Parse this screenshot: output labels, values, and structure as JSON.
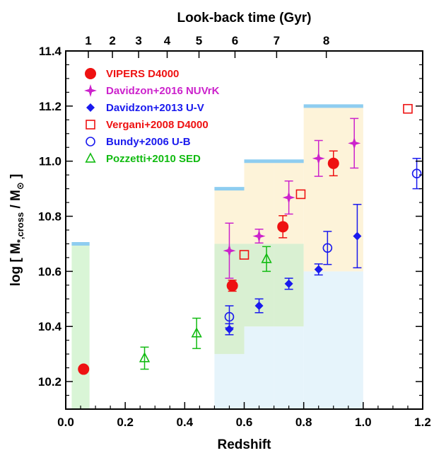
{
  "chart_data": {
    "type": "scatter",
    "xlabel": "Redshift",
    "x2label": "Look-back time (Gyr)",
    "ylabel_main": "log [ M",
    "ylabel_sub": "*,cross",
    "ylabel_mid": " / M",
    "ylabel_end": " ]",
    "xlim": [
      0.0,
      1.2
    ],
    "ylim": [
      10.1,
      11.4
    ],
    "xticks": [
      0.0,
      0.2,
      0.4,
      0.6,
      0.8,
      1.0,
      1.2
    ],
    "xtick_labels": [
      "0.0",
      "0.2",
      "0.4",
      "0.6",
      "0.8",
      "1.0",
      "1.2"
    ],
    "yticks": [
      10.2,
      10.4,
      10.6,
      10.8,
      11.0,
      11.2,
      11.4
    ],
    "ytick_labels": [
      "10.2",
      "10.4",
      "10.6",
      "10.8",
      "11.0",
      "11.2",
      "11.4"
    ],
    "top_ticks": [
      {
        "z": 0.076,
        "label": "1"
      },
      {
        "z": 0.157,
        "label": "2"
      },
      {
        "z": 0.245,
        "label": "3"
      },
      {
        "z": 0.341,
        "label": "4"
      },
      {
        "z": 0.448,
        "label": "5"
      },
      {
        "z": 0.569,
        "label": "6"
      },
      {
        "z": 0.709,
        "label": "7"
      },
      {
        "z": 0.876,
        "label": "8"
      }
    ],
    "shaded_regions": [
      {
        "x0": 0.02,
        "x1": 0.08,
        "y0": 10.1,
        "y1": 10.7,
        "color": "#d9f5d6"
      },
      {
        "x0": 0.5,
        "x1": 0.6,
        "y0": 10.1,
        "y1": 10.3,
        "color": "#e6f4fb"
      },
      {
        "x0": 0.5,
        "x1": 0.6,
        "y0": 10.3,
        "y1": 10.7,
        "color": "#d9f0d2"
      },
      {
        "x0": 0.5,
        "x1": 0.6,
        "y0": 10.7,
        "y1": 10.9,
        "color": "#fdf3d9"
      },
      {
        "x0": 0.6,
        "x1": 0.7,
        "y0": 10.1,
        "y1": 10.4,
        "color": "#e6f4fb"
      },
      {
        "x0": 0.6,
        "x1": 0.7,
        "y0": 10.4,
        "y1": 10.7,
        "color": "#d9f0d2"
      },
      {
        "x0": 0.6,
        "x1": 0.7,
        "y0": 10.7,
        "y1": 11.0,
        "color": "#fdf3d9"
      },
      {
        "x0": 0.7,
        "x1": 0.8,
        "y0": 10.1,
        "y1": 10.4,
        "color": "#e6f4fb"
      },
      {
        "x0": 0.7,
        "x1": 0.8,
        "y0": 10.4,
        "y1": 10.7,
        "color": "#d9f0d2"
      },
      {
        "x0": 0.7,
        "x1": 0.8,
        "y0": 10.7,
        "y1": 11.0,
        "color": "#fdf3d9"
      },
      {
        "x0": 0.8,
        "x1": 1.0,
        "y0": 10.1,
        "y1": 10.6,
        "color": "#e6f4fb"
      },
      {
        "x0": 0.8,
        "x1": 1.0,
        "y0": 10.6,
        "y1": 11.2,
        "color": "#fdf3d9"
      }
    ],
    "limit_lines": [
      {
        "x0": 0.02,
        "x1": 0.08,
        "y": 10.7
      },
      {
        "x0": 0.5,
        "x1": 0.6,
        "y": 10.9
      },
      {
        "x0": 0.6,
        "x1": 0.8,
        "y": 11.0
      },
      {
        "x0": 0.8,
        "x1": 1.0,
        "y": 11.2
      }
    ],
    "limit_line_color": "#8ecdf0",
    "series": [
      {
        "name": "VIPERS D4000",
        "marker": "circle-filled",
        "color": "#ee1111",
        "points": [
          {
            "x": 0.06,
            "y": 10.245,
            "err": 0.0
          },
          {
            "x": 0.56,
            "y": 10.548,
            "err": 0.02
          },
          {
            "x": 0.73,
            "y": 10.762,
            "err": 0.04
          },
          {
            "x": 0.9,
            "y": 10.992,
            "err": 0.045
          }
        ]
      },
      {
        "name": "Davidzon+2016 NUVrK",
        "marker": "star-filled",
        "color": "#cc22cc",
        "points": [
          {
            "x": 0.55,
            "y": 10.675,
            "err": 0.1
          },
          {
            "x": 0.65,
            "y": 10.728,
            "err": 0.025
          },
          {
            "x": 0.75,
            "y": 10.868,
            "err": 0.06
          },
          {
            "x": 0.85,
            "y": 11.01,
            "err": 0.065
          },
          {
            "x": 0.97,
            "y": 11.065,
            "err": 0.09
          }
        ]
      },
      {
        "name": "Davidzon+2013 U-V",
        "marker": "diamond-filled",
        "color": "#1a1aee",
        "points": [
          {
            "x": 0.55,
            "y": 10.39,
            "err": 0.02
          },
          {
            "x": 0.65,
            "y": 10.475,
            "err": 0.025
          },
          {
            "x": 0.75,
            "y": 10.555,
            "err": 0.02
          },
          {
            "x": 0.85,
            "y": 10.607,
            "err": 0.02
          },
          {
            "x": 0.98,
            "y": 10.728,
            "err": 0.115
          }
        ]
      },
      {
        "name": "Vergani+2008 D4000",
        "marker": "square-open",
        "color": "#ee1111",
        "points": [
          {
            "x": 0.6,
            "y": 10.66,
            "err": 0.0
          },
          {
            "x": 0.79,
            "y": 10.88,
            "err": 0.0
          },
          {
            "x": 1.15,
            "y": 11.19,
            "err": 0.0
          }
        ]
      },
      {
        "name": "Bundy+2006 U-B",
        "marker": "circle-open",
        "color": "#1a1aee",
        "points": [
          {
            "x": 0.55,
            "y": 10.435,
            "err": 0.04
          },
          {
            "x": 0.88,
            "y": 10.685,
            "err": 0.06
          },
          {
            "x": 1.18,
            "y": 10.955,
            "err": 0.055
          }
        ]
      },
      {
        "name": "Pozzetti+2010 SED",
        "marker": "triangle-open",
        "color": "#11bb11",
        "points": [
          {
            "x": 0.265,
            "y": 10.285,
            "err": 0.04
          },
          {
            "x": 0.44,
            "y": 10.375,
            "err": 0.055
          },
          {
            "x": 0.675,
            "y": 10.645,
            "err": 0.045
          }
        ]
      }
    ]
  }
}
